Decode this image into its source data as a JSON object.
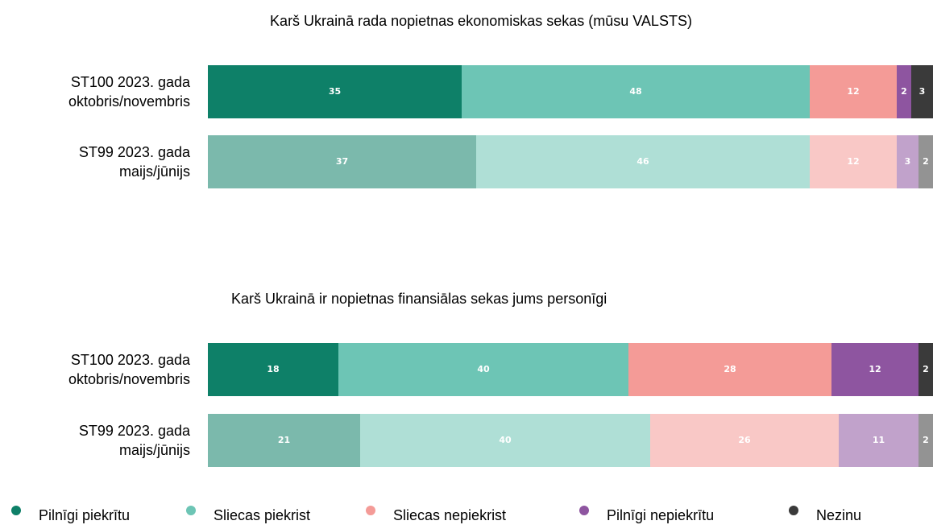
{
  "chart_data": [
    {
      "type": "bar",
      "stacked": true,
      "orientation": "horizontal",
      "title": "Karš Ukrainā rada nopietnas ekonomiskas sekas (mūsu VALSTS)",
      "categories": [
        [
          "ST100 2023. gada",
          "oktobris/novembris"
        ],
        [
          "ST99 2023. gada",
          "maijs/jūnijs"
        ]
      ],
      "xlim": [
        0,
        100
      ],
      "series": [
        {
          "name": "Pilnīgi piekrītu",
          "color": "#0e8068",
          "values": [
            35,
            37
          ]
        },
        {
          "name": "Sliecas piekrist",
          "color": "#6dc5b5",
          "values": [
            48,
            46
          ]
        },
        {
          "name": "Sliecas nepiekrist",
          "color": "#f49b97",
          "values": [
            12,
            12
          ]
        },
        {
          "name": "Pilnīgi nepiekrītu",
          "color": "#8e55a0",
          "values": [
            2,
            3
          ]
        },
        {
          "name": "Nezinu",
          "color": "#3a3a3a",
          "values": [
            3,
            2
          ]
        }
      ]
    },
    {
      "type": "bar",
      "stacked": true,
      "orientation": "horizontal",
      "title": "Karš Ukrainā ir nopietnas finansiālas sekas jums personīgi",
      "categories": [
        [
          "ST100 2023. gada",
          "oktobris/novembris"
        ],
        [
          "ST99 2023. gada",
          "maijs/jūnijs"
        ]
      ],
      "xlim": [
        0,
        100
      ],
      "series": [
        {
          "name": "Pilnīgi piekrītu",
          "color": "#0e8068",
          "values": [
            18,
            21
          ]
        },
        {
          "name": "Sliecas piekrist",
          "color": "#6dc5b5",
          "values": [
            40,
            40
          ]
        },
        {
          "name": "Sliecas nepiekrist",
          "color": "#f49b97",
          "values": [
            28,
            26
          ]
        },
        {
          "name": "Pilnīgi nepiekrītu",
          "color": "#8e55a0",
          "values": [
            12,
            11
          ]
        },
        {
          "name": "Nezinu",
          "color": "#3a3a3a",
          "values": [
            2,
            2
          ]
        }
      ]
    }
  ]
}
